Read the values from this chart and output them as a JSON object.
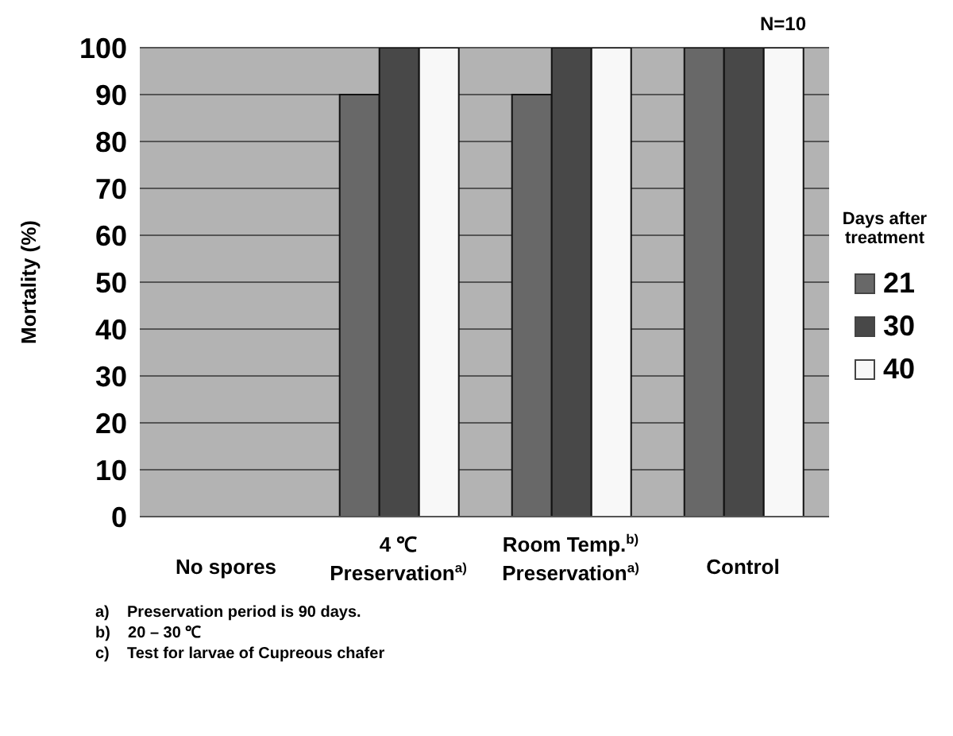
{
  "chart_data": {
    "type": "bar",
    "ylabel": "Mortality (%)",
    "legend_title": "Days after treatment",
    "legend": "right",
    "categories": [
      "No spores",
      "4 ℃\nPreservation$^{a)}$",
      "Room Temp.$^{b)}$\nPreservation$^{a)}$",
      "Control"
    ],
    "series": [
      {
        "name": "21",
        "color": "#686868",
        "values": [
          0,
          90,
          90,
          100
        ]
      },
      {
        "name": "30",
        "color": "#484848",
        "values": [
          0,
          100,
          100,
          100
        ]
      },
      {
        "name": "40",
        "color": "#f8f8f8",
        "values": [
          0,
          100,
          100,
          100
        ]
      }
    ],
    "ylim": [
      0,
      100
    ],
    "yticks": [
      0,
      10,
      20,
      30,
      40,
      50,
      60,
      70,
      80,
      90,
      100
    ],
    "grid": "y",
    "annotations": [
      "N=10",
      "a)    Preservation period is 90 days.",
      "b)    20 – 30 ℃",
      "c)    Test for larvae of Cupreous chafer"
    ]
  }
}
